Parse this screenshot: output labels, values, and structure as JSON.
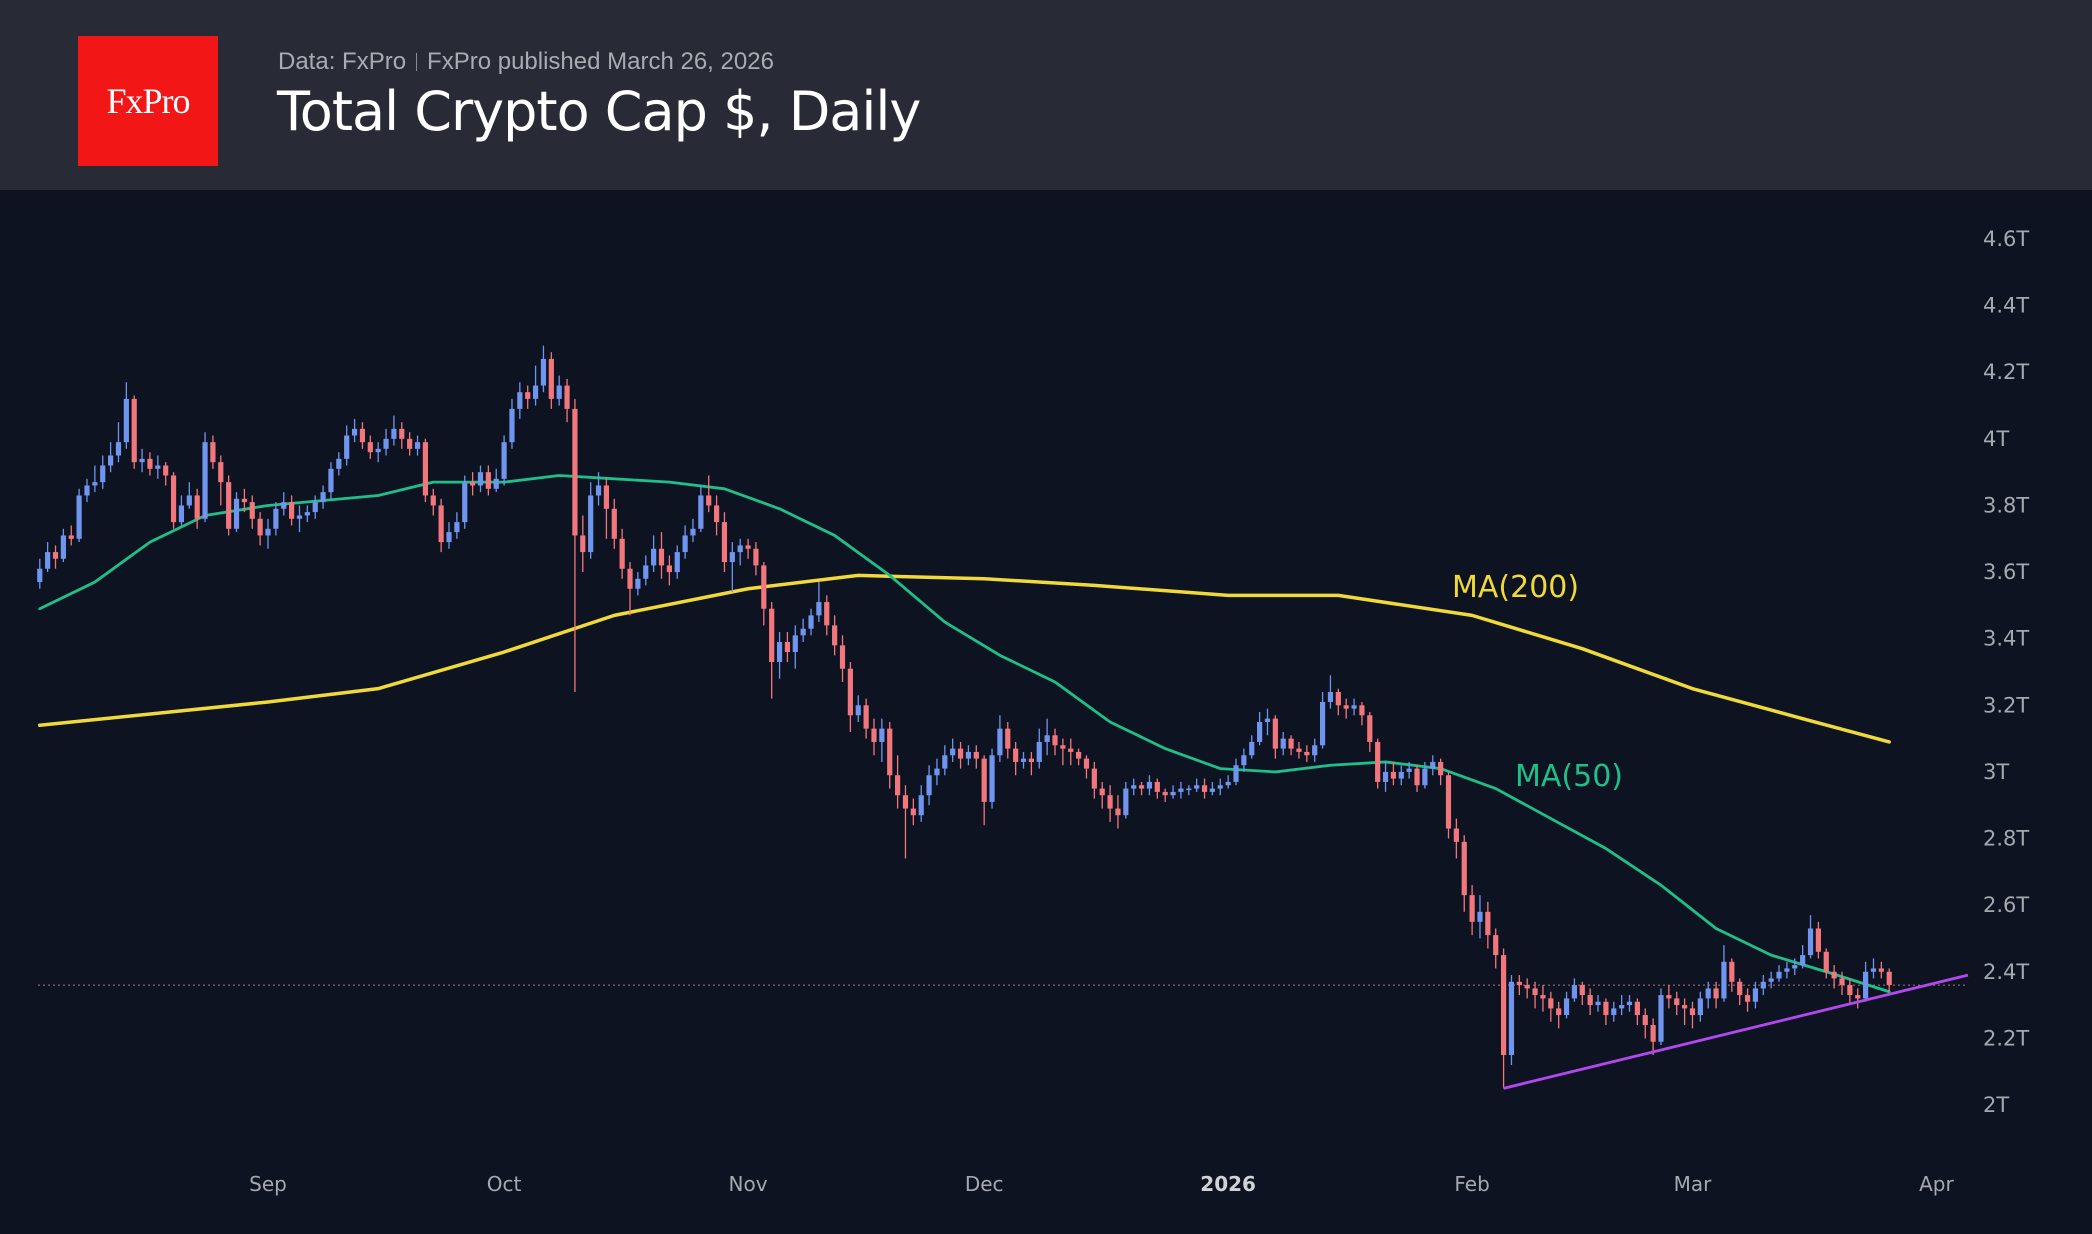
{
  "header": {
    "logo_text": "FxPro",
    "source": "Data: FxPro",
    "published": "FxPro published March 26, 2026",
    "title": "Total Crypto Cap $, Daily"
  },
  "chart_data": {
    "type": "candlestick",
    "title": "Total Crypto Cap $, Daily",
    "first_date": "2025-08-03",
    "interval": "1 day",
    "unit": "T",
    "ylim": [
      1.9,
      4.7
    ],
    "y_ticks": [
      "4.6T",
      "4.4T",
      "4.2T",
      "4T",
      "3.8T",
      "3.6T",
      "3.4T",
      "3.2T",
      "3T",
      "2.8T",
      "2.6T",
      "2.4T",
      "2.2T",
      "2T"
    ],
    "y_tick_values": [
      4.6,
      4.4,
      4.2,
      4.0,
      3.8,
      3.6,
      3.4,
      3.2,
      3.0,
      2.8,
      2.6,
      2.4,
      2.2,
      2.0
    ],
    "x_ticks": [
      {
        "label": "Sep",
        "date": "2025-09-01",
        "bold": false
      },
      {
        "label": "Oct",
        "date": "2025-10-01",
        "bold": false
      },
      {
        "label": "Nov",
        "date": "2025-11-01",
        "bold": false
      },
      {
        "label": "Dec",
        "date": "2025-12-01",
        "bold": false
      },
      {
        "label": "2026",
        "date": "2026-01-01",
        "bold": true
      },
      {
        "label": "Feb",
        "date": "2026-02-01",
        "bold": false
      },
      {
        "label": "Mar",
        "date": "2026-03-01",
        "bold": false
      },
      {
        "label": "Apr",
        "date": "2026-04-01",
        "bold": false
      }
    ],
    "first_open": 3.57,
    "close": [
      3.61,
      3.66,
      3.64,
      3.71,
      3.7,
      3.83,
      3.86,
      3.87,
      3.92,
      3.95,
      3.99,
      4.12,
      3.93,
      3.94,
      3.91,
      3.92,
      3.89,
      3.75,
      3.8,
      3.83,
      3.76,
      3.99,
      3.93,
      3.87,
      3.73,
      3.82,
      3.81,
      3.76,
      3.71,
      3.73,
      3.79,
      3.81,
      3.76,
      3.77,
      3.78,
      3.81,
      3.84,
      3.91,
      3.94,
      4.01,
      4.03,
      3.99,
      3.96,
      3.97,
      4.0,
      4.03,
      4.0,
      3.97,
      3.99,
      3.83,
      3.8,
      3.69,
      3.72,
      3.75,
      3.87,
      3.86,
      3.9,
      3.85,
      3.88,
      3.99,
      4.09,
      4.14,
      4.12,
      4.16,
      4.24,
      4.12,
      4.16,
      4.09,
      3.71,
      3.66,
      3.83,
      3.86,
      3.79,
      3.7,
      3.61,
      3.55,
      3.58,
      3.62,
      3.67,
      3.62,
      3.6,
      3.66,
      3.71,
      3.73,
      3.83,
      3.8,
      3.75,
      3.63,
      3.66,
      3.68,
      3.67,
      3.62,
      3.49,
      3.33,
      3.39,
      3.36,
      3.41,
      3.43,
      3.47,
      3.51,
      3.44,
      3.38,
      3.31,
      3.17,
      3.2,
      3.13,
      3.09,
      3.13,
      2.99,
      2.93,
      2.89,
      2.87,
      2.93,
      2.99,
      3.01,
      3.05,
      3.07,
      3.04,
      3.06,
      3.04,
      2.91,
      3.05,
      3.13,
      3.07,
      3.03,
      3.04,
      3.03,
      3.09,
      3.11,
      3.08,
      3.07,
      3.06,
      3.04,
      3.01,
      2.95,
      2.93,
      2.89,
      2.87,
      2.95,
      2.96,
      2.95,
      2.97,
      2.94,
      2.93,
      2.94,
      2.95,
      2.95,
      2.96,
      2.94,
      2.95,
      2.96,
      2.97,
      3.02,
      3.05,
      3.09,
      3.15,
      3.16,
      3.07,
      3.1,
      3.07,
      3.06,
      3.05,
      3.08,
      3.21,
      3.24,
      3.2,
      3.19,
      3.2,
      3.17,
      3.09,
      2.97,
      3.0,
      2.98,
      3.0,
      3.01,
      2.96,
      3.01,
      3.03,
      2.99,
      2.83,
      2.79,
      2.63,
      2.55,
      2.58,
      2.51,
      2.45,
      2.15,
      2.37,
      2.36,
      2.35,
      2.33,
      2.32,
      2.29,
      2.27,
      2.32,
      2.36,
      2.33,
      2.3,
      2.31,
      2.27,
      2.29,
      2.3,
      2.31,
      2.27,
      2.24,
      2.19,
      2.33,
      2.32,
      2.3,
      2.29,
      2.27,
      2.32,
      2.35,
      2.32,
      2.43,
      2.37,
      2.33,
      2.31,
      2.35,
      2.37,
      2.38,
      2.4,
      2.41,
      2.42,
      2.45,
      2.53,
      2.46,
      2.4,
      2.38,
      2.36,
      2.33,
      2.32,
      2.4,
      2.41,
      2.4,
      2.36
    ],
    "high": [
      3.64,
      3.69,
      3.68,
      3.73,
      3.74,
      3.85,
      3.88,
      3.92,
      3.95,
      3.99,
      4.05,
      4.17,
      4.13,
      3.97,
      3.96,
      3.95,
      3.93,
      3.9,
      3.83,
      3.87,
      3.85,
      4.02,
      4.01,
      3.95,
      3.89,
      3.84,
      3.85,
      3.83,
      3.78,
      3.76,
      3.81,
      3.84,
      3.83,
      3.8,
      3.8,
      3.83,
      3.86,
      3.93,
      3.96,
      4.04,
      4.06,
      4.05,
      4.01,
      3.99,
      4.03,
      4.07,
      4.05,
      4.02,
      4.01,
      4.0,
      3.85,
      3.82,
      3.75,
      3.78,
      3.89,
      3.9,
      3.92,
      3.92,
      3.91,
      4.01,
      4.12,
      4.17,
      4.16,
      4.22,
      4.28,
      4.26,
      4.19,
      4.18,
      4.12,
      3.77,
      3.87,
      3.9,
      3.88,
      3.82,
      3.73,
      3.63,
      3.6,
      3.65,
      3.71,
      3.72,
      3.65,
      3.68,
      3.74,
      3.76,
      3.86,
      3.89,
      3.83,
      3.78,
      3.69,
      3.7,
      3.7,
      3.69,
      3.63,
      3.51,
      3.42,
      3.42,
      3.44,
      3.46,
      3.49,
      3.57,
      3.53,
      3.47,
      3.41,
      3.33,
      3.23,
      3.22,
      3.16,
      3.16,
      3.15,
      3.05,
      2.96,
      2.92,
      2.96,
      3.02,
      3.04,
      3.08,
      3.1,
      3.09,
      3.08,
      3.08,
      3.05,
      3.07,
      3.17,
      3.15,
      3.09,
      3.06,
      3.06,
      3.13,
      3.16,
      3.13,
      3.1,
      3.1,
      3.07,
      3.05,
      3.03,
      2.97,
      2.96,
      2.93,
      2.97,
      2.98,
      2.97,
      2.99,
      2.98,
      2.95,
      2.96,
      2.97,
      2.96,
      2.98,
      2.98,
      2.97,
      2.98,
      2.99,
      3.04,
      3.07,
      3.11,
      3.18,
      3.19,
      3.17,
      3.12,
      3.11,
      3.09,
      3.08,
      3.1,
      3.24,
      3.29,
      3.25,
      3.22,
      3.22,
      3.21,
      3.18,
      3.1,
      3.03,
      3.03,
      3.02,
      3.03,
      3.02,
      3.03,
      3.05,
      3.04,
      3.0,
      2.86,
      2.81,
      2.66,
      2.63,
      2.61,
      2.53,
      2.47,
      2.39,
      2.39,
      2.38,
      2.37,
      2.36,
      2.34,
      2.31,
      2.34,
      2.38,
      2.37,
      2.35,
      2.33,
      2.32,
      2.31,
      2.33,
      2.33,
      2.32,
      2.29,
      2.26,
      2.35,
      2.36,
      2.34,
      2.32,
      2.31,
      2.34,
      2.37,
      2.37,
      2.48,
      2.44,
      2.38,
      2.35,
      2.37,
      2.39,
      2.4,
      2.42,
      2.43,
      2.44,
      2.48,
      2.57,
      2.55,
      2.47,
      2.42,
      2.4,
      2.38,
      2.35,
      2.43,
      2.44,
      2.43,
      2.41
    ],
    "low": [
      3.55,
      3.6,
      3.61,
      3.63,
      3.68,
      3.69,
      3.81,
      3.84,
      3.85,
      3.9,
      3.93,
      3.97,
      3.91,
      3.9,
      3.89,
      3.88,
      3.86,
      3.73,
      3.74,
      3.79,
      3.73,
      3.75,
      3.91,
      3.8,
      3.71,
      3.72,
      3.78,
      3.73,
      3.68,
      3.67,
      3.71,
      3.77,
      3.74,
      3.72,
      3.75,
      3.76,
      3.79,
      3.82,
      3.89,
      3.92,
      3.99,
      3.97,
      3.94,
      3.93,
      3.95,
      3.98,
      3.97,
      3.95,
      3.95,
      3.81,
      3.77,
      3.66,
      3.67,
      3.7,
      3.73,
      3.83,
      3.84,
      3.83,
      3.84,
      3.86,
      3.97,
      4.06,
      4.09,
      4.1,
      4.14,
      4.09,
      4.1,
      4.05,
      3.24,
      3.6,
      3.64,
      3.8,
      3.7,
      3.67,
      3.58,
      3.47,
      3.53,
      3.56,
      3.6,
      3.58,
      3.56,
      3.58,
      3.64,
      3.69,
      3.72,
      3.78,
      3.71,
      3.6,
      3.54,
      3.62,
      3.64,
      3.59,
      3.44,
      3.22,
      3.28,
      3.33,
      3.31,
      3.39,
      3.41,
      3.45,
      3.41,
      3.35,
      3.27,
      3.12,
      3.15,
      3.1,
      3.05,
      3.03,
      2.95,
      2.89,
      2.74,
      2.84,
      2.85,
      2.9,
      2.96,
      2.99,
      3.03,
      3.01,
      3.02,
      3.01,
      2.84,
      2.89,
      3.03,
      3.04,
      2.99,
      3.01,
      2.99,
      3.01,
      3.05,
      3.05,
      3.02,
      3.02,
      3.02,
      2.98,
      2.92,
      2.89,
      2.85,
      2.83,
      2.86,
      2.93,
      2.93,
      2.93,
      2.92,
      2.91,
      2.92,
      2.92,
      2.93,
      2.94,
      2.92,
      2.93,
      2.93,
      2.95,
      2.96,
      3.0,
      3.04,
      3.08,
      3.11,
      3.04,
      3.05,
      3.05,
      3.04,
      3.03,
      3.03,
      3.07,
      3.19,
      3.17,
      3.16,
      3.17,
      3.14,
      3.06,
      2.95,
      2.94,
      2.96,
      2.96,
      2.98,
      2.94,
      2.95,
      2.99,
      2.96,
      2.8,
      2.74,
      2.58,
      2.51,
      2.5,
      2.47,
      2.41,
      2.05,
      2.12,
      2.33,
      2.32,
      2.29,
      2.28,
      2.25,
      2.23,
      2.26,
      2.31,
      2.3,
      2.27,
      2.28,
      2.24,
      2.25,
      2.27,
      2.28,
      2.24,
      2.2,
      2.15,
      2.18,
      2.29,
      2.27,
      2.24,
      2.23,
      2.25,
      2.29,
      2.29,
      2.31,
      2.34,
      2.3,
      2.28,
      2.29,
      2.33,
      2.35,
      2.37,
      2.38,
      2.39,
      2.41,
      2.44,
      2.44,
      2.38,
      2.35,
      2.33,
      2.3,
      2.29,
      2.31,
      2.38,
      2.38,
      2.34
    ],
    "last_price": 2.36,
    "ma50": {
      "label": "MA(50)",
      "color": "#1fbf8a",
      "points": [
        [
          "2025-08-03",
          3.49
        ],
        [
          "2025-08-10",
          3.57
        ],
        [
          "2025-08-17",
          3.69
        ],
        [
          "2025-08-24",
          3.77
        ],
        [
          "2025-09-01",
          3.8
        ],
        [
          "2025-09-15",
          3.83
        ],
        [
          "2025-09-22",
          3.87
        ],
        [
          "2025-10-01",
          3.87
        ],
        [
          "2025-10-08",
          3.89
        ],
        [
          "2025-10-15",
          3.88
        ],
        [
          "2025-10-22",
          3.87
        ],
        [
          "2025-10-29",
          3.85
        ],
        [
          "2025-11-05",
          3.79
        ],
        [
          "2025-11-12",
          3.71
        ],
        [
          "2025-11-19",
          3.59
        ],
        [
          "2025-11-26",
          3.45
        ],
        [
          "2025-12-03",
          3.35
        ],
        [
          "2025-12-10",
          3.27
        ],
        [
          "2025-12-17",
          3.15
        ],
        [
          "2025-12-24",
          3.07
        ],
        [
          "2025-12-31",
          3.01
        ],
        [
          "2026-01-07",
          3.0
        ],
        [
          "2026-01-14",
          3.02
        ],
        [
          "2026-01-21",
          3.03
        ],
        [
          "2026-01-28",
          3.01
        ],
        [
          "2026-02-04",
          2.95
        ],
        [
          "2026-02-11",
          2.86
        ],
        [
          "2026-02-18",
          2.77
        ],
        [
          "2026-02-25",
          2.66
        ],
        [
          "2026-03-04",
          2.53
        ],
        [
          "2026-03-11",
          2.45
        ],
        [
          "2026-03-18",
          2.4
        ],
        [
          "2026-03-26",
          2.34
        ]
      ]
    },
    "ma200": {
      "label": "MA(200)",
      "color": "#f0d93a",
      "points": [
        [
          "2025-08-03",
          3.14
        ],
        [
          "2025-09-01",
          3.21
        ],
        [
          "2025-09-15",
          3.25
        ],
        [
          "2025-10-01",
          3.36
        ],
        [
          "2025-10-15",
          3.47
        ],
        [
          "2025-11-01",
          3.55
        ],
        [
          "2025-11-15",
          3.59
        ],
        [
          "2025-12-01",
          3.58
        ],
        [
          "2025-12-15",
          3.56
        ],
        [
          "2026-01-01",
          3.53
        ],
        [
          "2026-01-15",
          3.53
        ],
        [
          "2026-02-01",
          3.47
        ],
        [
          "2026-02-15",
          3.37
        ],
        [
          "2026-03-01",
          3.25
        ],
        [
          "2026-03-15",
          3.16
        ],
        [
          "2026-03-26",
          3.09
        ]
      ]
    },
    "trendline": {
      "color": "#b348f0",
      "points": [
        [
          "2026-02-05",
          2.05
        ],
        [
          "2026-04-05",
          2.39
        ]
      ]
    },
    "colors": {
      "up": "#7095ef",
      "down": "#f2777d",
      "background": "#0d1320",
      "axis_text": "#a6a8b0"
    },
    "grid": false
  }
}
